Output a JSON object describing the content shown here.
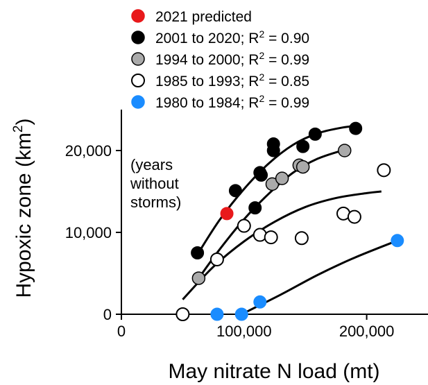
{
  "chart_data": {
    "type": "scatter",
    "xlabel": "May nitrate N load (mt)",
    "ylabel_main": "Hypoxic zone (km",
    "ylabel_sup": "2",
    "ylabel_end": ")",
    "xlim": [
      0,
      250000
    ],
    "ylim": [
      0,
      25000
    ],
    "xticks": [
      {
        "value": 0,
        "label": "0"
      },
      {
        "value": 100000,
        "label": "100,000"
      },
      {
        "value": 200000,
        "label": "200,000"
      }
    ],
    "yticks": [
      {
        "value": 0,
        "label": "0"
      },
      {
        "value": 10000,
        "label": "10,000"
      },
      {
        "value": 20000,
        "label": "20,000"
      }
    ],
    "grid": false,
    "legend_position": "top",
    "annotation": [
      "(years",
      "without",
      "storms)"
    ],
    "series": [
      {
        "name": "2021 predicted",
        "r2_label": "",
        "color": "#e8191b",
        "fill": "#e8191b",
        "points": [
          [
            86000,
            12300
          ]
        ]
      },
      {
        "name": "2001 to 2020; R",
        "r2_label": " = 0.90",
        "color": "#000000",
        "fill": "#000000",
        "points": [
          [
            62000,
            7500
          ],
          [
            93000,
            15100
          ],
          [
            109000,
            13000
          ],
          [
            113000,
            17300
          ],
          [
            114000,
            17000
          ],
          [
            124000,
            20800
          ],
          [
            124000,
            20000
          ],
          [
            148000,
            20500
          ],
          [
            158000,
            22000
          ],
          [
            191000,
            22700
          ]
        ],
        "fit": [
          [
            62000,
            7300
          ],
          [
            80000,
            11500
          ],
          [
            100000,
            15300
          ],
          [
            120000,
            18400
          ],
          [
            140000,
            20700
          ],
          [
            160000,
            22100
          ],
          [
            180000,
            22800
          ],
          [
            192000,
            23000
          ]
        ]
      },
      {
        "name": "1994 to 2000; R",
        "r2_label": " = 0.99",
        "color": "#000000",
        "fill": "#aaaaaa",
        "points": [
          [
            63000,
            4400
          ],
          [
            123000,
            15900
          ],
          [
            131000,
            16600
          ],
          [
            145000,
            18200
          ],
          [
            148000,
            18000
          ],
          [
            182000,
            20000
          ]
        ],
        "fit": [
          [
            63000,
            4400
          ],
          [
            80000,
            7900
          ],
          [
            100000,
            11600
          ],
          [
            120000,
            14700
          ],
          [
            140000,
            17300
          ],
          [
            160000,
            19000
          ],
          [
            182000,
            20100
          ]
        ]
      },
      {
        "name": "1985 to 1993; R",
        "r2_label": " = 0.85",
        "color": "#000000",
        "fill": "#ffffff",
        "points": [
          [
            50000,
            0
          ],
          [
            78000,
            6700
          ],
          [
            100000,
            10800
          ],
          [
            113000,
            9700
          ],
          [
            122000,
            9400
          ],
          [
            147000,
            9300
          ],
          [
            181000,
            12300
          ],
          [
            190000,
            11900
          ],
          [
            214000,
            17600
          ]
        ],
        "fit": [
          [
            50000,
            1800
          ],
          [
            75000,
            5800
          ],
          [
            100000,
            8900
          ],
          [
            125000,
            11300
          ],
          [
            150000,
            13100
          ],
          [
            175000,
            14200
          ],
          [
            200000,
            14800
          ],
          [
            212000,
            15000
          ]
        ]
      },
      {
        "name": "1980 to 1984; R",
        "r2_label": " = 0.99",
        "color": "#1a8cff",
        "fill": "#1a8cff",
        "points": [
          [
            78000,
            0
          ],
          [
            98000,
            0
          ],
          [
            113000,
            1500
          ],
          [
            225000,
            9000
          ]
        ],
        "fit": [
          [
            98000,
            0
          ],
          [
            130000,
            2400
          ],
          [
            160000,
            4800
          ],
          [
            190000,
            6900
          ],
          [
            225000,
            9000
          ]
        ]
      }
    ]
  }
}
